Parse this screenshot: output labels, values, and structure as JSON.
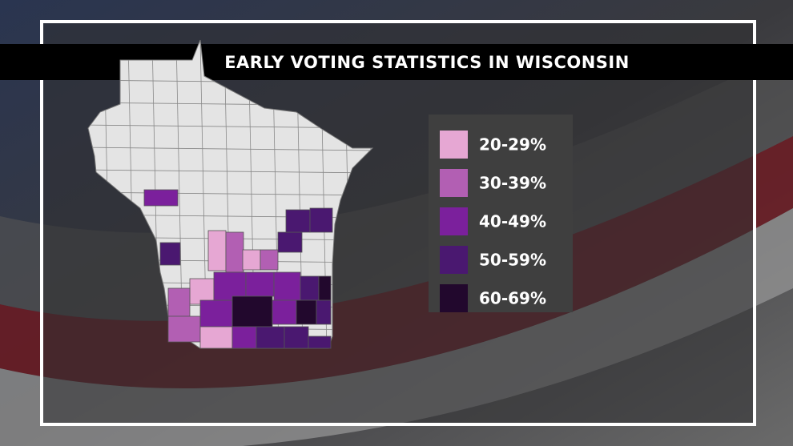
{
  "title": "EARLY VOTING STATISTICS IN WISCONSIN",
  "legend": [
    {
      "label": "20-29%",
      "color": "#e6a7d3"
    },
    {
      "label": "30-39%",
      "color": "#b25fb3"
    },
    {
      "label": "40-49%",
      "color": "#7b209c"
    },
    {
      "label": "50-59%",
      "color": "#4a1870"
    },
    {
      "label": "60-69%",
      "color": "#22082d"
    }
  ]
}
